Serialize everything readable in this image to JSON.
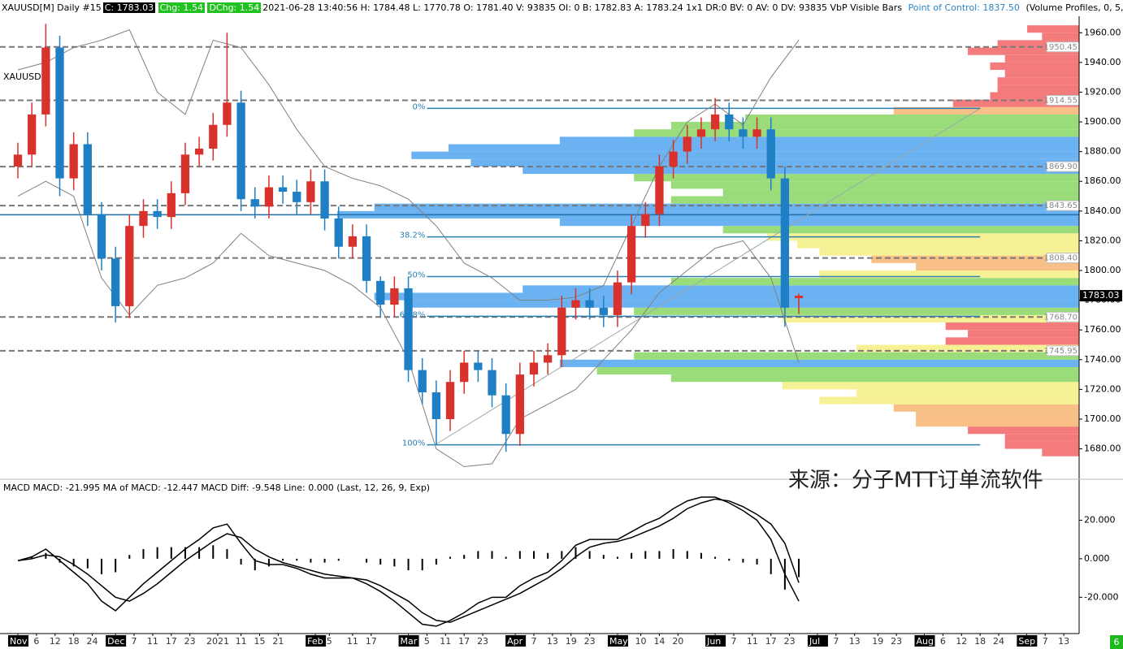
{
  "header": {
    "symbol": "XAUUSD[M]  Daily  #15",
    "close": "C: 1783.03",
    "chg": "Chg: 1.54",
    "dchg": "DChg: 1.54",
    "stats": "2021-06-28 13:40:56 H: 1784.48 L: 1770.78 O: 1781.40 V: 93835 OI: 0 B: 1782.83 A: 1783.24 1x1 DR:0 BV: 0 AV: 0 DV: 93835 VbP Visible Bars",
    "poc_label": "Point of Control: 1837.50",
    "study": "(Volume Profiles, 0, 5,"
  },
  "watermark": "来源：分子MTT订单流软件",
  "corner_badge": "6",
  "chart_data": [
    {
      "type": "candlestick",
      "symbol_label": "XAUUSD",
      "x": [
        0,
        3,
        6,
        9,
        12,
        15,
        18,
        21,
        24,
        27,
        30,
        33,
        36,
        39,
        42,
        45,
        48,
        51,
        54,
        57,
        60,
        63,
        66,
        69,
        72,
        75,
        78,
        81,
        84,
        87,
        90,
        93,
        96,
        99,
        102,
        105,
        108,
        111,
        114,
        117,
        120,
        123,
        126,
        129,
        132,
        135,
        138,
        141,
        144,
        147,
        150,
        153,
        156,
        159,
        162,
        165,
        168
      ],
      "open": [
        1870,
        1878,
        1905,
        1950,
        1862,
        1885,
        1838,
        1808,
        1776,
        1830,
        1840,
        1836,
        1852,
        1878,
        1882,
        1898,
        1913,
        1848,
        1843,
        1856,
        1853,
        1846,
        1860,
        1835,
        1816,
        1823,
        1793,
        1777,
        1788,
        1733,
        1718,
        1700,
        1725,
        1738,
        1733,
        1716,
        1690,
        1730,
        1738,
        1743,
        1775,
        1780,
        1775,
        1770,
        1792,
        1830,
        1838,
        1870,
        1880,
        1890,
        1895,
        1905,
        1895,
        1890,
        1895,
        1862,
        1781.4
      ],
      "high": [
        1886,
        1913,
        1966,
        1958,
        1893,
        1893,
        1846,
        1816,
        1838,
        1848,
        1848,
        1860,
        1886,
        1890,
        1906,
        1960,
        1921,
        1856,
        1864,
        1864,
        1861,
        1868,
        1868,
        1843,
        1831,
        1831,
        1796,
        1796,
        1796,
        1741,
        1726,
        1733,
        1746,
        1746,
        1741,
        1724,
        1738,
        1746,
        1751,
        1783,
        1788,
        1788,
        1783,
        1800,
        1838,
        1846,
        1878,
        1888,
        1898,
        1903,
        1916,
        1913,
        1903,
        1903,
        1903,
        1870,
        1784.48
      ],
      "low": [
        1862,
        1870,
        1897,
        1850,
        1854,
        1830,
        1800,
        1765,
        1768,
        1822,
        1828,
        1828,
        1844,
        1870,
        1874,
        1890,
        1840,
        1835,
        1835,
        1845,
        1838,
        1838,
        1827,
        1808,
        1808,
        1785,
        1769,
        1769,
        1725,
        1710,
        1683,
        1692,
        1717,
        1725,
        1708,
        1678,
        1682,
        1722,
        1730,
        1735,
        1767,
        1767,
        1762,
        1762,
        1784,
        1822,
        1830,
        1862,
        1872,
        1882,
        1887,
        1887,
        1882,
        1882,
        1854,
        1762,
        1770.78
      ],
      "close": [
        1878,
        1905,
        1950,
        1862,
        1885,
        1838,
        1808,
        1776,
        1830,
        1840,
        1836,
        1852,
        1878,
        1882,
        1898,
        1913,
        1848,
        1843,
        1856,
        1853,
        1846,
        1860,
        1835,
        1816,
        1823,
        1793,
        1777,
        1788,
        1733,
        1718,
        1700,
        1725,
        1738,
        1733,
        1716,
        1690,
        1730,
        1738,
        1743,
        1775,
        1780,
        1775,
        1770,
        1792,
        1830,
        1838,
        1870,
        1880,
        1890,
        1895,
        1905,
        1895,
        1890,
        1895,
        1862,
        1775,
        1783.03
      ],
      "up_color": "#d9312b",
      "down_color": "#1f7fc4",
      "bands": {
        "color": "#808080",
        "x": [
          0,
          6,
          12,
          18,
          24,
          30,
          36,
          42,
          48,
          54,
          60,
          66,
          72,
          78,
          84,
          90,
          96,
          102,
          108,
          114,
          120,
          126,
          132,
          138,
          144,
          150,
          156,
          162,
          168
        ],
        "upper": [
          1935,
          1940,
          1950,
          1955,
          1962,
          1920,
          1905,
          1955,
          1950,
          1925,
          1895,
          1870,
          1862,
          1857,
          1848,
          1830,
          1805,
          1795,
          1780,
          1780,
          1782,
          1790,
          1830,
          1870,
          1900,
          1912,
          1898,
          1930,
          1955
        ],
        "lower": [
          1850,
          1860,
          1850,
          1795,
          1770,
          1790,
          1795,
          1805,
          1825,
          1810,
          1805,
          1800,
          1790,
          1775,
          1740,
          1680,
          1668,
          1670,
          1700,
          1710,
          1720,
          1740,
          1760,
          1785,
          1800,
          1815,
          1820,
          1795,
          1738
        ]
      },
      "levels": [
        1950.45,
        1914.55,
        {
          "value": 1869.9,
          "label": "1869.90"
        },
        1843.65,
        {
          "value": 1808.4,
          "label": "1808.40"
        },
        {
          "value": 1768.7,
          "label": "1768.70"
        },
        1745.95
      ],
      "poc": 1837.5,
      "poc_color": "#1f6fa8",
      "fib": {
        "color": "#2a7fb0",
        "x": [
          88,
          207
        ],
        "anchor": [
          1682.7,
          1909.1
        ],
        "levels": [
          {
            "label": "0%",
            "price": 1909.1
          },
          {
            "label": "38.2%",
            "price": 1822.6
          },
          {
            "label": "50%",
            "price": 1795.9
          },
          {
            "label": "61.8%",
            "price": 1769.2
          },
          {
            "label": "100%",
            "price": 1682.7
          }
        ]
      },
      "volume_profile": {
        "bins": [
          1675,
          1680,
          1685,
          1690,
          1695,
          1700,
          1705,
          1710,
          1715,
          1720,
          1725,
          1730,
          1735,
          1740,
          1745,
          1750,
          1755,
          1760,
          1765,
          1770,
          1775,
          1780,
          1785,
          1790,
          1795,
          1800,
          1805,
          1810,
          1815,
          1820,
          1825,
          1830,
          1835,
          1840,
          1845,
          1850,
          1855,
          1860,
          1865,
          1870,
          1875,
          1880,
          1885,
          1890,
          1895,
          1900,
          1905,
          1910,
          1915,
          1920,
          1925,
          1930,
          1935,
          1940,
          1945,
          1950,
          1955,
          1960,
          1965
        ],
        "values": [
          5,
          10,
          10,
          15,
          22,
          22,
          25,
          35,
          30,
          40,
          55,
          65,
          70,
          60,
          30,
          18,
          15,
          18,
          40,
          60,
          90,
          95,
          75,
          55,
          35,
          22,
          28,
          35,
          38,
          42,
          48,
          70,
          100,
          95,
          55,
          48,
          55,
          60,
          75,
          82,
          90,
          85,
          70,
          60,
          55,
          45,
          25,
          17,
          12,
          11,
          11,
          10,
          12,
          10,
          15,
          11,
          5,
          7
        ],
        "max": 100,
        "color_scale": [
          {
            "min": 70,
            "color": "#5aaaf0"
          },
          {
            "min": 45,
            "color": "#8fd86a"
          },
          {
            "min": 30,
            "color": "#f6f08a"
          },
          {
            "min": 20,
            "color": "#f7b97a"
          },
          {
            "min": 0,
            "color": "#f26d6d"
          }
        ]
      },
      "xlim": [
        -3.85,
        228.3
      ],
      "ylim": [
        1665,
        1970
      ],
      "yticks": [
        {
          "value": 1960,
          "label": "1960.00"
        },
        {
          "value": 1940,
          "label": "1940.00"
        },
        {
          "value": 1920,
          "label": "1920.00"
        },
        {
          "value": 1900,
          "label": "1900.00"
        },
        {
          "value": 1880,
          "label": "1880.00"
        },
        {
          "value": 1860,
          "label": "1860.00"
        },
        {
          "value": 1840,
          "label": "1840.00"
        },
        {
          "value": 1820,
          "label": "1820.00"
        },
        {
          "value": 1800,
          "label": "1800.00"
        },
        {
          "value": 1780,
          "label": "1780.00"
        },
        {
          "value": 1760,
          "label": "1760.00"
        },
        {
          "value": 1740,
          "label": "1740.00"
        },
        {
          "value": 1720,
          "label": "1720.00"
        },
        {
          "value": 1700,
          "label": "1700.00"
        },
        {
          "value": 1680,
          "label": "1680.00"
        }
      ]
    },
    {
      "type": "macd",
      "title": "MACD  MACD: -21.995  MA of MACD: -12.447  MACD Diff: -9.548  Line: 0.000   (Last, 12, 26, 9, Exp)",
      "x": [
        0,
        3,
        6,
        9,
        12,
        15,
        18,
        21,
        24,
        27,
        30,
        33,
        36,
        39,
        42,
        45,
        48,
        51,
        54,
        57,
        60,
        63,
        66,
        69,
        72,
        75,
        78,
        81,
        84,
        87,
        90,
        93,
        96,
        99,
        102,
        105,
        108,
        111,
        114,
        117,
        120,
        123,
        126,
        129,
        132,
        135,
        138,
        141,
        144,
        147,
        150,
        153,
        156,
        159,
        162,
        165,
        168
      ],
      "macd": [
        -1,
        1,
        5,
        -1,
        -7,
        -13,
        -22,
        -27,
        -20,
        -13,
        -7,
        -1,
        5,
        10,
        16,
        18,
        8,
        -1,
        -3,
        -3,
        -5,
        -8,
        -10,
        -10,
        -10,
        -13,
        -17,
        -22,
        -28,
        -34,
        -35,
        -32,
        -28,
        -23,
        -20,
        -20,
        -14,
        -10,
        -7,
        -1,
        7,
        10,
        10,
        10,
        14,
        18,
        21,
        26,
        30,
        32,
        32,
        29,
        25,
        20,
        10,
        -8,
        -21.995
      ],
      "signal": [
        -1,
        0,
        2,
        1,
        -3,
        -8,
        -14,
        -20,
        -22,
        -18,
        -13,
        -7,
        -1,
        4,
        9,
        13,
        11,
        5,
        1,
        -2,
        -4,
        -6,
        -8,
        -9,
        -10,
        -11,
        -14,
        -18,
        -22,
        -28,
        -32,
        -33,
        -30,
        -27,
        -24,
        -21,
        -18,
        -14,
        -10,
        -5,
        1,
        6,
        8,
        9,
        11,
        14,
        17,
        21,
        26,
        29,
        31,
        30,
        27,
        23,
        18,
        8,
        -12.447
      ],
      "diff": [
        0,
        1,
        3,
        -2,
        -4,
        -5,
        -8,
        -7,
        2,
        5,
        6,
        6,
        6,
        6,
        7,
        5,
        -3,
        -6,
        -4,
        -1,
        -1,
        -2,
        -2,
        -1,
        0,
        -2,
        -3,
        -4,
        -6,
        -6,
        -3,
        1,
        2,
        4,
        4,
        1,
        4,
        4,
        3,
        4,
        6,
        4,
        2,
        1,
        3,
        4,
        4,
        5,
        4,
        3,
        1,
        -1,
        -2,
        -3,
        -8,
        -16,
        -9.548
      ],
      "color": "#000000",
      "xlim": [
        -3.85,
        228.3
      ],
      "ylim": [
        -38,
        32
      ],
      "yticks": [
        {
          "value": 20,
          "label": "20.000"
        },
        {
          "value": 0,
          "label": "0.000"
        },
        {
          "value": -20,
          "label": "-20.000"
        }
      ],
      "xticks": [
        {
          "value": 0,
          "label": "Nov"
        },
        {
          "value": 4,
          "label": "6"
        },
        {
          "value": 8,
          "label": "12"
        },
        {
          "value": 12,
          "label": "18"
        },
        {
          "value": 16,
          "label": "24"
        },
        {
          "value": 21,
          "label": "Dec"
        },
        {
          "value": 25,
          "label": "7"
        },
        {
          "value": 29,
          "label": "11"
        },
        {
          "value": 33,
          "label": "17"
        },
        {
          "value": 37,
          "label": "23"
        },
        {
          "value": 43,
          "label": "2021"
        },
        {
          "value": 48,
          "label": "11"
        },
        {
          "value": 52,
          "label": "15"
        },
        {
          "value": 56,
          "label": "21"
        },
        {
          "value": 64,
          "label": "Feb"
        },
        {
          "value": 67,
          "label": "5"
        },
        {
          "value": 72,
          "label": "11"
        },
        {
          "value": 76,
          "label": "17"
        },
        {
          "value": 84,
          "label": "Mar"
        },
        {
          "value": 88,
          "label": "5"
        },
        {
          "value": 92,
          "label": "11"
        },
        {
          "value": 96,
          "label": "17"
        },
        {
          "value": 100,
          "label": "23"
        },
        {
          "value": 107,
          "label": "Apr"
        },
        {
          "value": 111,
          "label": "7"
        },
        {
          "value": 115,
          "label": "13"
        },
        {
          "value": 119,
          "label": "19"
        },
        {
          "value": 123,
          "label": "23"
        },
        {
          "value": 129,
          "label": "May"
        },
        {
          "value": 134,
          "label": "10"
        },
        {
          "value": 138,
          "label": "14"
        },
        {
          "value": 142,
          "label": "20"
        },
        {
          "value": 150,
          "label": "Jun"
        },
        {
          "value": 154,
          "label": "7"
        },
        {
          "value": 158,
          "label": "11"
        },
        {
          "value": 162,
          "label": "17"
        },
        {
          "value": 166,
          "label": "23"
        },
        {
          "value": 172,
          "label": "Jul"
        },
        {
          "value": 176,
          "label": "7"
        },
        {
          "value": 180,
          "label": "13"
        },
        {
          "value": 185,
          "label": "19"
        },
        {
          "value": 189,
          "label": "23"
        },
        {
          "value": 195,
          "label": "Aug"
        },
        {
          "value": 199,
          "label": "6"
        },
        {
          "value": 203,
          "label": "12"
        },
        {
          "value": 207,
          "label": "18"
        },
        {
          "value": 211,
          "label": "24"
        },
        {
          "value": 217,
          "label": "Sep"
        },
        {
          "value": 221,
          "label": "7"
        },
        {
          "value": 225,
          "label": "13"
        }
      ]
    }
  ]
}
